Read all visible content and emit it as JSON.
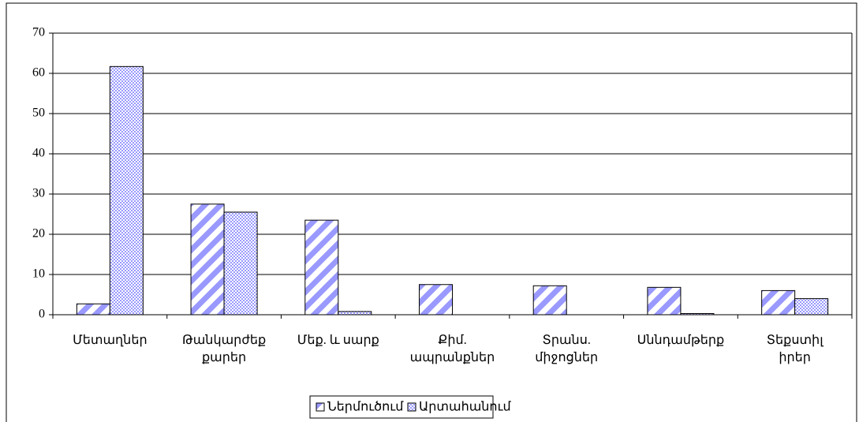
{
  "chart_data": {
    "type": "bar",
    "categories": [
      "Մետաղներ",
      "Թանկարժեք\nքարեր",
      "Մեք. և սարք",
      "Քիմ.\nապրանքներ",
      "Տրանս.\nմիջոցներ",
      "Սննդամթերք",
      "Տեքստիլ\nիրեր"
    ],
    "series": [
      {
        "name": "Ներմուծում",
        "color": "#9999ff",
        "values": [
          2.7,
          27.5,
          23.5,
          7.5,
          7.2,
          6.8,
          6.0
        ]
      },
      {
        "name": "Արտահանում",
        "color": "#9999ff",
        "values": [
          61.7,
          25.5,
          0.8,
          0,
          0,
          0.3,
          4.0
        ]
      }
    ],
    "ylim": [
      0,
      70
    ],
    "yticks": [
      0,
      10,
      20,
      30,
      40,
      50,
      60,
      70
    ],
    "grid": true,
    "legend": "bottom"
  }
}
